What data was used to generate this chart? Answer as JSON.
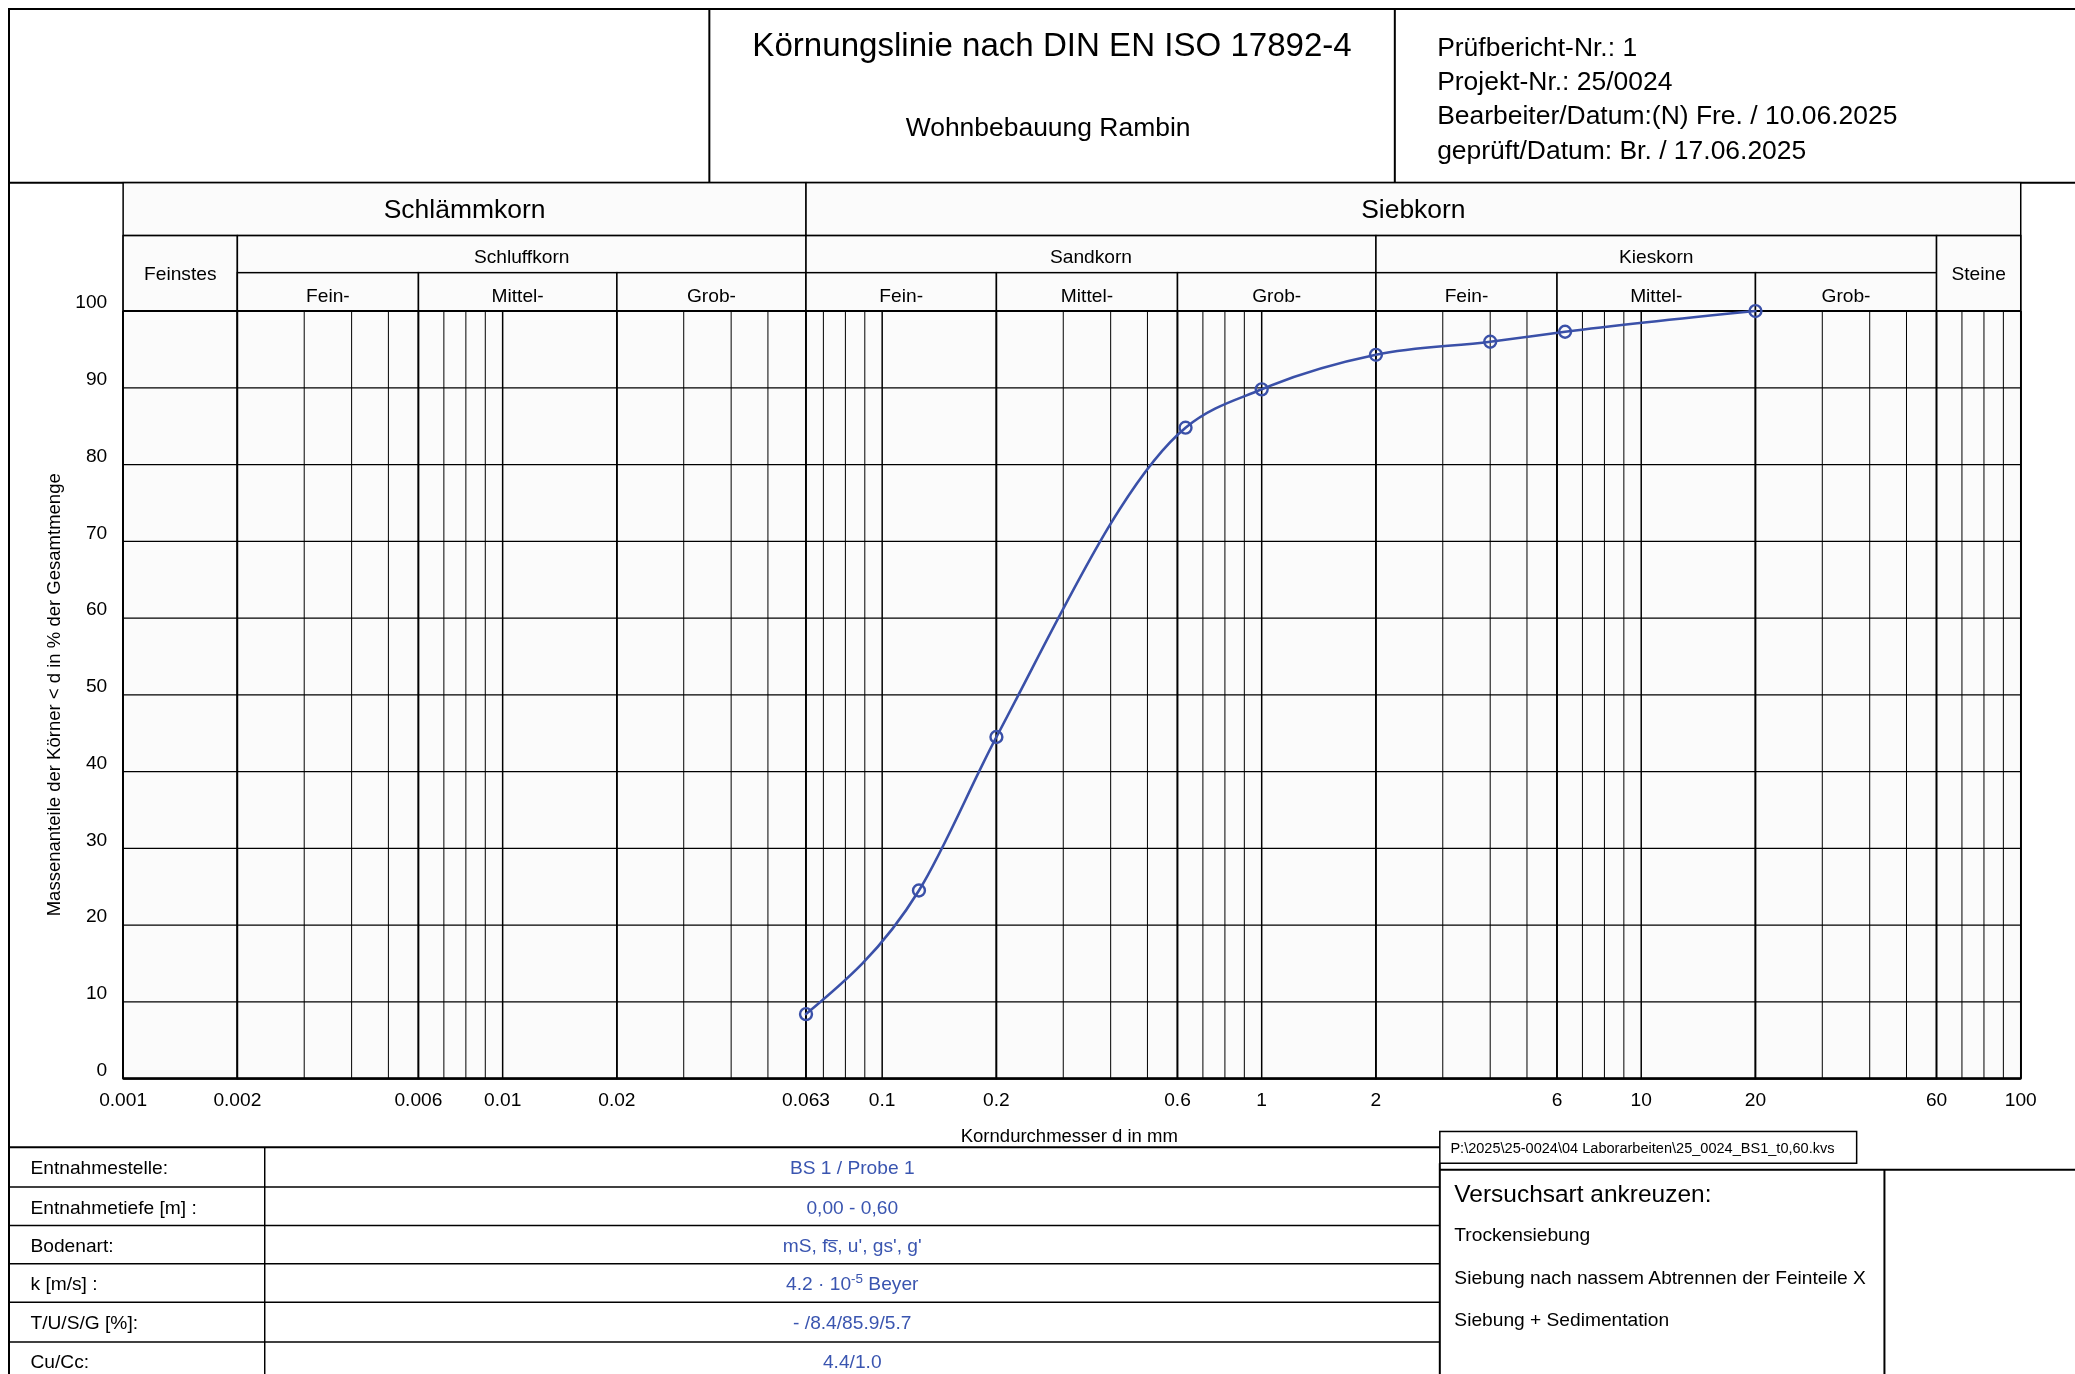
{
  "chart_data": {
    "type": "line",
    "title": "Körnungslinie nach DIN EN ISO 17892-4",
    "subtitle": "Wohnbebauung Rambin",
    "xlabel": "Korndurchmesser d in mm",
    "ylabel": "Massenanteile der Körner < d in % der Gesamtmenge",
    "x": [
      0.063,
      0.125,
      0.2,
      0.63,
      1,
      2,
      4,
      6.3,
      20
    ],
    "series": [
      {
        "color": "#3a50a8",
        "values": [
          8.4,
          24.5,
          44.5,
          84.8,
          89.8,
          94.3,
          96.0,
          97.3,
          100
        ]
      }
    ],
    "log": "x",
    "xlim": [
      0.001,
      100
    ],
    "xticks": [
      0.001,
      0.002,
      {
        "value": 0.003,
        "label": null
      },
      {
        "value": 0.004,
        "label": null
      },
      {
        "value": 0.005,
        "label": null
      },
      0.006,
      {
        "value": 0.007,
        "label": null
      },
      {
        "value": 0.008,
        "label": null
      },
      {
        "value": 0.009,
        "label": null
      },
      0.01,
      0.02,
      {
        "value": 0.03,
        "label": null
      },
      {
        "value": 0.04,
        "label": null
      },
      {
        "value": 0.05,
        "label": null
      },
      0.063,
      {
        "value": 0.07,
        "label": null
      },
      {
        "value": 0.08,
        "label": null
      },
      {
        "value": 0.09,
        "label": null
      },
      0.1,
      0.2,
      {
        "value": 0.3,
        "label": null
      },
      {
        "value": 0.4,
        "label": null
      },
      {
        "value": 0.5,
        "label": null
      },
      0.6,
      {
        "value": 0.7,
        "label": null
      },
      {
        "value": 0.8,
        "label": null
      },
      {
        "value": 0.9,
        "label": null
      },
      1,
      2,
      {
        "value": 3,
        "label": null
      },
      {
        "value": 4,
        "label": null
      },
      {
        "value": 5,
        "label": null
      },
      6,
      {
        "value": 7,
        "label": null
      },
      {
        "value": 8,
        "label": null
      },
      {
        "value": 9,
        "label": null
      },
      10,
      20,
      {
        "value": 30,
        "label": null
      },
      {
        "value": 40,
        "label": null
      },
      {
        "value": 50,
        "label": null
      },
      60,
      {
        "value": 70,
        "label": null
      },
      {
        "value": 80,
        "label": null
      },
      {
        "value": 90,
        "label": null
      },
      100
    ],
    "ylim": [
      0,
      100
    ],
    "yticks": [
      0,
      10,
      20,
      30,
      40,
      50,
      60,
      70,
      80,
      90,
      100
    ],
    "grid": true,
    "marker": "circle",
    "line_style": "solid",
    "bands": [
      {
        "axis": "x",
        "from": 0.001,
        "to": 0.063,
        "label": "Schlämmkorn"
      },
      {
        "axis": "x",
        "from": 0.063,
        "to": 100,
        "label": "Siebkorn"
      },
      {
        "axis": "x",
        "from": 0.001,
        "to": 0.002,
        "label": "Feinstes"
      },
      {
        "axis": "x",
        "from": 0.002,
        "to": 0.063,
        "label": "Schluffkorn"
      },
      {
        "axis": "x",
        "from": 0.002,
        "to": 0.006,
        "label": "Fein-"
      },
      {
        "axis": "x",
        "from": 0.006,
        "to": 0.02,
        "label": "Mittel-"
      },
      {
        "axis": "x",
        "from": 0.02,
        "to": 0.063,
        "label": "Grob-"
      },
      {
        "axis": "x",
        "from": 0.063,
        "to": 2,
        "label": "Sandkorn"
      },
      {
        "axis": "x",
        "from": 0.063,
        "to": 0.2,
        "label": "Fein-"
      },
      {
        "axis": "x",
        "from": 0.2,
        "to": 0.6,
        "label": "Mittel-"
      },
      {
        "axis": "x",
        "from": 0.6,
        "to": 2,
        "label": "Grob-"
      },
      {
        "axis": "x",
        "from": 2,
        "to": 60,
        "label": "Kieskorn"
      },
      {
        "axis": "x",
        "from": 2,
        "to": 6,
        "label": "Fein-"
      },
      {
        "axis": "x",
        "from": 6,
        "to": 20,
        "label": "Mittel-"
      },
      {
        "axis": "x",
        "from": 20,
        "to": 60,
        "label": "Grob-"
      },
      {
        "axis": "x",
        "from": 60,
        "to": 100,
        "label": "Steine"
      }
    ],
    "annotations": [
      "Prüfbericht-Nr.:  1",
      "Projekt-Nr.:  25/0024",
      "Bearbeiter/Datum:(N)  Fre. / 10.06.2025",
      "geprüft/Datum:  Br. / 17.06.2025",
      "P:\\2025\\25-0024\\04 Laborarbeiten\\25_0024_BS1_t0,60.kvs",
      "Entnahmestelle:",
      "BS 1 / Probe 1",
      "Entnahmetiefe [m] :",
      "0,00 - 0,60",
      "Bodenart:",
      "mS, fs̅, u', gs', g'",
      "k [m/s] :",
      "4.2 · 10$^{-5}$  Beyer",
      "T/U/S/G [%]:",
      "- /8.4/85.9/5.7",
      "Cu/Cc:",
      "4.4/1.0",
      "Versuchsart ankreuzen:",
      "Trockensiebung",
      "Siebung nach nassem Abtrennen der Feinteile X",
      "Siebung + Sedimentation"
    ]
  }
}
